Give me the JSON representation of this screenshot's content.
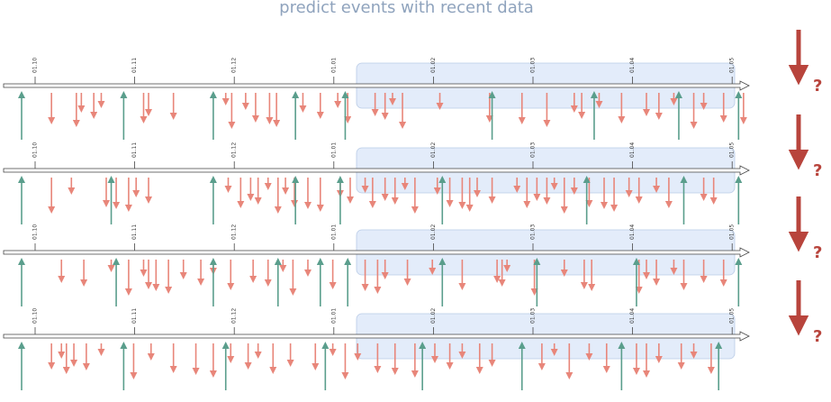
{
  "title": "predict events with recent data",
  "colors": {
    "up_arrow": "#5a9e8c",
    "down_arrow": "#e8867a",
    "prediction_arrow": "#b8443c",
    "window_fill": "#e3ecfa",
    "window_stroke": "#b9cbe6",
    "axis": "#444444"
  },
  "question_mark": "?",
  "timelines": [
    {
      "tick_labels": [
        "01.10",
        "01.11",
        "01.12",
        "01.01",
        "01.02",
        "01.03",
        "01.04",
        "01.05"
      ],
      "up_events": [
        0.0,
        2.05,
        3.85,
        5.5,
        6.5,
        9.45,
        11.5,
        13.2,
        14.4
      ],
      "down_events": [
        0.6,
        1.1,
        1.2,
        1.45,
        1.6,
        2.45,
        2.55,
        3.05,
        4.1,
        4.22,
        4.5,
        4.7,
        4.98,
        5.12,
        5.65,
        6.0,
        6.35,
        6.55,
        7.1,
        7.3,
        7.45,
        7.65,
        8.4,
        9.4,
        10.05,
        10.55,
        11.1,
        11.25,
        11.6,
        12.05,
        12.55,
        12.8,
        13.1,
        13.5,
        13.7,
        14.1,
        14.5
      ]
    },
    {
      "tick_labels": [
        "01.10",
        "01.11",
        "01.12",
        "01.01",
        "01.02",
        "01.03",
        "01.04",
        "01.05"
      ],
      "up_events": [
        0.0,
        1.8,
        3.85,
        5.5,
        6.4,
        8.45,
        11.35,
        13.3,
        14.4
      ],
      "down_events": [
        0.6,
        1.0,
        1.7,
        1.9,
        2.15,
        2.3,
        2.55,
        4.15,
        4.4,
        4.6,
        4.75,
        4.95,
        5.15,
        5.3,
        5.48,
        5.75,
        6.0,
        6.4,
        6.6,
        6.9,
        7.05,
        7.3,
        7.5,
        7.7,
        7.9,
        8.35,
        8.6,
        8.85,
        9.0,
        9.15,
        9.45,
        9.95,
        10.15,
        10.35,
        10.55,
        10.7,
        10.9,
        11.1,
        11.4,
        11.7,
        11.9,
        12.2,
        12.4,
        12.75,
        13.0,
        13.7,
        13.9
      ]
    },
    {
      "tick_labels": [
        "01.10",
        "01.11",
        "01.12",
        "01.01",
        "01.02",
        "01.03",
        "01.04",
        "01.05"
      ],
      "up_events": [
        0.0,
        1.9,
        3.85,
        5.15,
        6.0,
        6.55,
        8.45,
        10.35,
        12.35,
        14.4
      ],
      "down_events": [
        0.8,
        1.25,
        1.8,
        2.15,
        2.45,
        2.55,
        2.7,
        2.95,
        3.25,
        3.6,
        3.85,
        4.2,
        4.65,
        4.95,
        5.25,
        5.45,
        5.75,
        6.25,
        6.9,
        7.15,
        7.3,
        7.75,
        8.25,
        8.85,
        9.55,
        9.65,
        9.75,
        10.3,
        10.9,
        11.3,
        11.45,
        12.4,
        12.55,
        12.75,
        13.1,
        13.3,
        13.7,
        14.1
      ]
    },
    {
      "tick_labels": [
        "01.10",
        "01.11",
        "01.12",
        "01.01",
        "01.02",
        "01.03",
        "01.04",
        "01.05"
      ],
      "up_events": [
        0.0,
        2.05,
        4.1,
        6.1,
        8.05,
        10.05,
        12.05,
        14.0
      ],
      "down_events": [
        0.6,
        0.8,
        0.9,
        1.05,
        1.3,
        1.6,
        2.25,
        2.6,
        3.05,
        3.5,
        3.85,
        4.2,
        4.55,
        4.75,
        5.05,
        5.4,
        5.9,
        6.25,
        6.5,
        6.75,
        7.15,
        7.5,
        7.9,
        8.3,
        8.6,
        8.85,
        9.2,
        9.45,
        10.45,
        10.7,
        11.0,
        11.4,
        11.75,
        12.35,
        12.55,
        12.8,
        13.25,
        13.5,
        13.85
      ]
    }
  ]
}
